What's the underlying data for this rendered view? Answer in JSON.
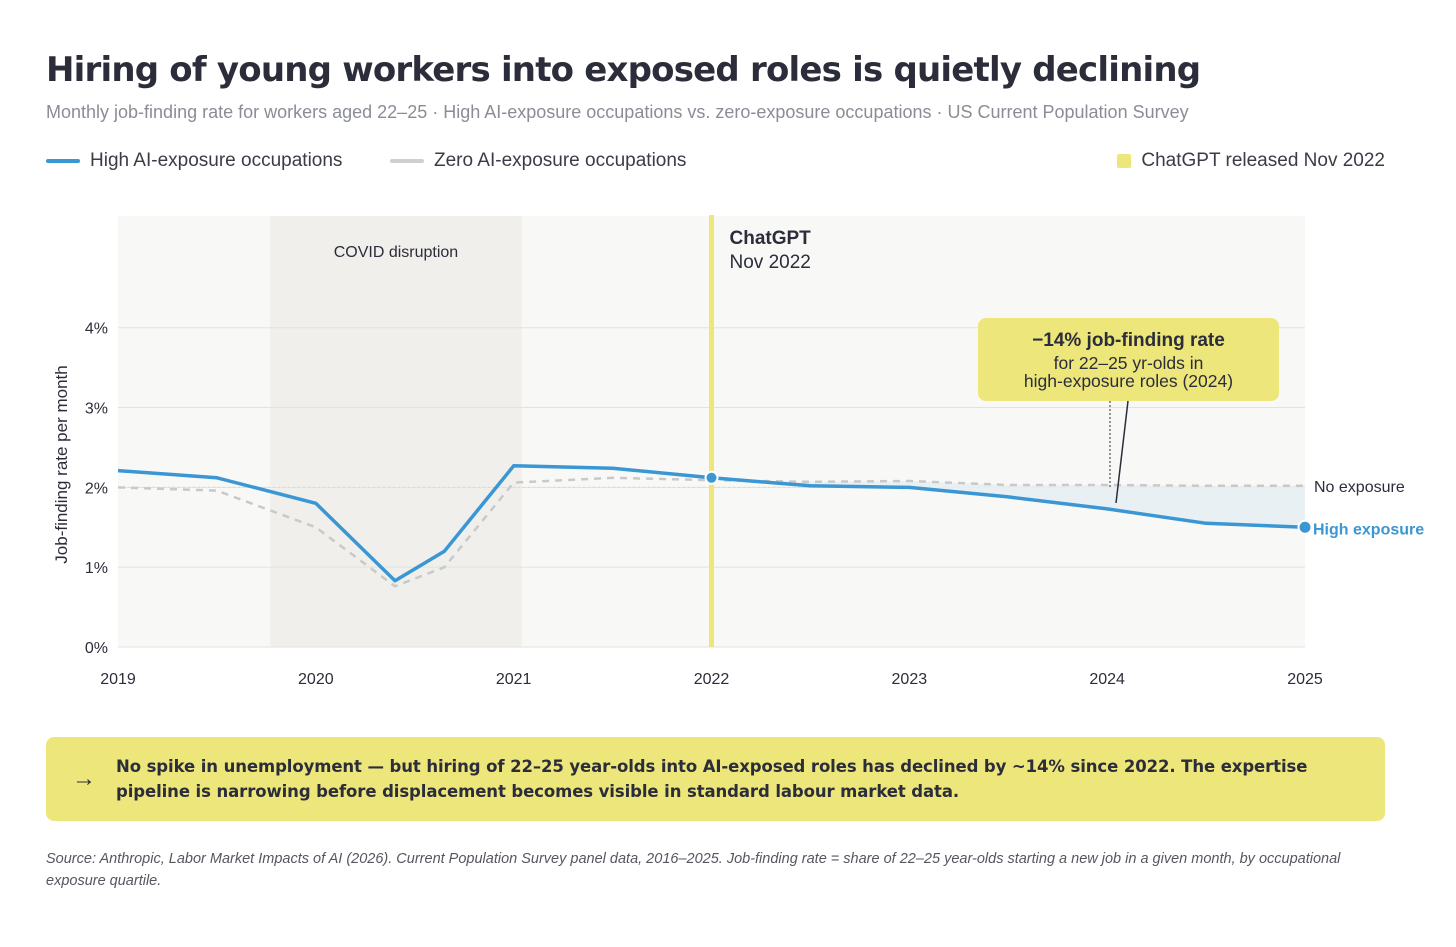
{
  "header": {
    "title": "Hiring of young workers into exposed roles is quietly declining",
    "subtitle": "Monthly job-finding rate for workers aged 22–25 · High AI-exposure occupations vs. zero-exposure occupations · US Current Population Survey"
  },
  "legend": {
    "high_label": "High AI-exposure occupations",
    "zero_label": "Zero AI-exposure occupations",
    "marker_label": "ChatGPT released Nov 2022"
  },
  "colors": {
    "high": "#3a97d4",
    "zero": "#c9c9c9",
    "chatgpt_band": "#ede67a",
    "covid_band": "#f0efeb",
    "plot_bg": "#f8f8f6",
    "gap_fill": "#e6eef4"
  },
  "chart_data": {
    "type": "line",
    "title": "Hiring of young workers into exposed roles is quietly declining",
    "ylabel": "Job-finding rate per month",
    "xlabel": "",
    "xlim": [
      2019,
      2025
    ],
    "ylim": [
      0,
      5.4
    ],
    "yticks": [
      0,
      1,
      2,
      3,
      4
    ],
    "ytick_labels": [
      "0%",
      "1%",
      "2%",
      "3%",
      "4%"
    ],
    "xticks": [
      2019,
      2020,
      2021,
      2022,
      2023,
      2024,
      2025
    ],
    "xtick_labels": [
      "2019",
      "2020",
      "2021",
      "2022",
      "2023",
      "2024",
      "2025"
    ],
    "grid": true,
    "series": [
      {
        "name": "High AI-exposure occupations",
        "style": "solid",
        "x": [
          2019.0,
          2019.5,
          2020.0,
          2020.4,
          2020.65,
          2021.0,
          2021.5,
          2022.0,
          2022.5,
          2023.0,
          2023.5,
          2024.0,
          2024.5,
          2025.0
        ],
        "y": [
          2.21,
          2.12,
          1.8,
          0.83,
          1.2,
          2.27,
          2.24,
          2.12,
          2.02,
          2.0,
          1.88,
          1.73,
          1.55,
          1.5
        ]
      },
      {
        "name": "Zero AI-exposure occupations",
        "style": "dashed",
        "x": [
          2019.0,
          2019.5,
          2020.0,
          2020.4,
          2020.65,
          2021.0,
          2021.5,
          2022.0,
          2022.5,
          2023.0,
          2023.5,
          2024.0,
          2024.5,
          2025.0
        ],
        "y": [
          2.0,
          1.96,
          1.5,
          0.76,
          1.0,
          2.06,
          2.12,
          2.09,
          2.07,
          2.08,
          2.03,
          2.03,
          2.02,
          2.02
        ]
      }
    ],
    "reference_line_y": 2.0,
    "covid_band": {
      "x0": 2019.77,
      "x1": 2021.04,
      "label": "COVID disruption"
    },
    "chatgpt_marker": {
      "x": 2022.0,
      "label_bold": "ChatGPT",
      "label": "Nov 2022"
    },
    "end_labels": {
      "zero": "No exposure",
      "high": "High exposure"
    },
    "annotation": {
      "title": "−14% job-finding rate",
      "line1": "for 22–25 yr-olds in",
      "line2": "high-exposure roles (2024)"
    }
  },
  "callout": {
    "arrow": "→",
    "text": "No spike in unemployment — but hiring of 22–25 year-olds into AI-exposed roles has declined by ~14% since 2022. The expertise pipeline is narrowing before displacement becomes visible in standard labour market data."
  },
  "source": {
    "text": "Source: Anthropic, Labor Market Impacts of AI (2026). Current Population Survey panel data, 2016–2025. Job-finding rate = share of 22–25 year-olds starting a new job in a given month, by occupational exposure quartile."
  }
}
